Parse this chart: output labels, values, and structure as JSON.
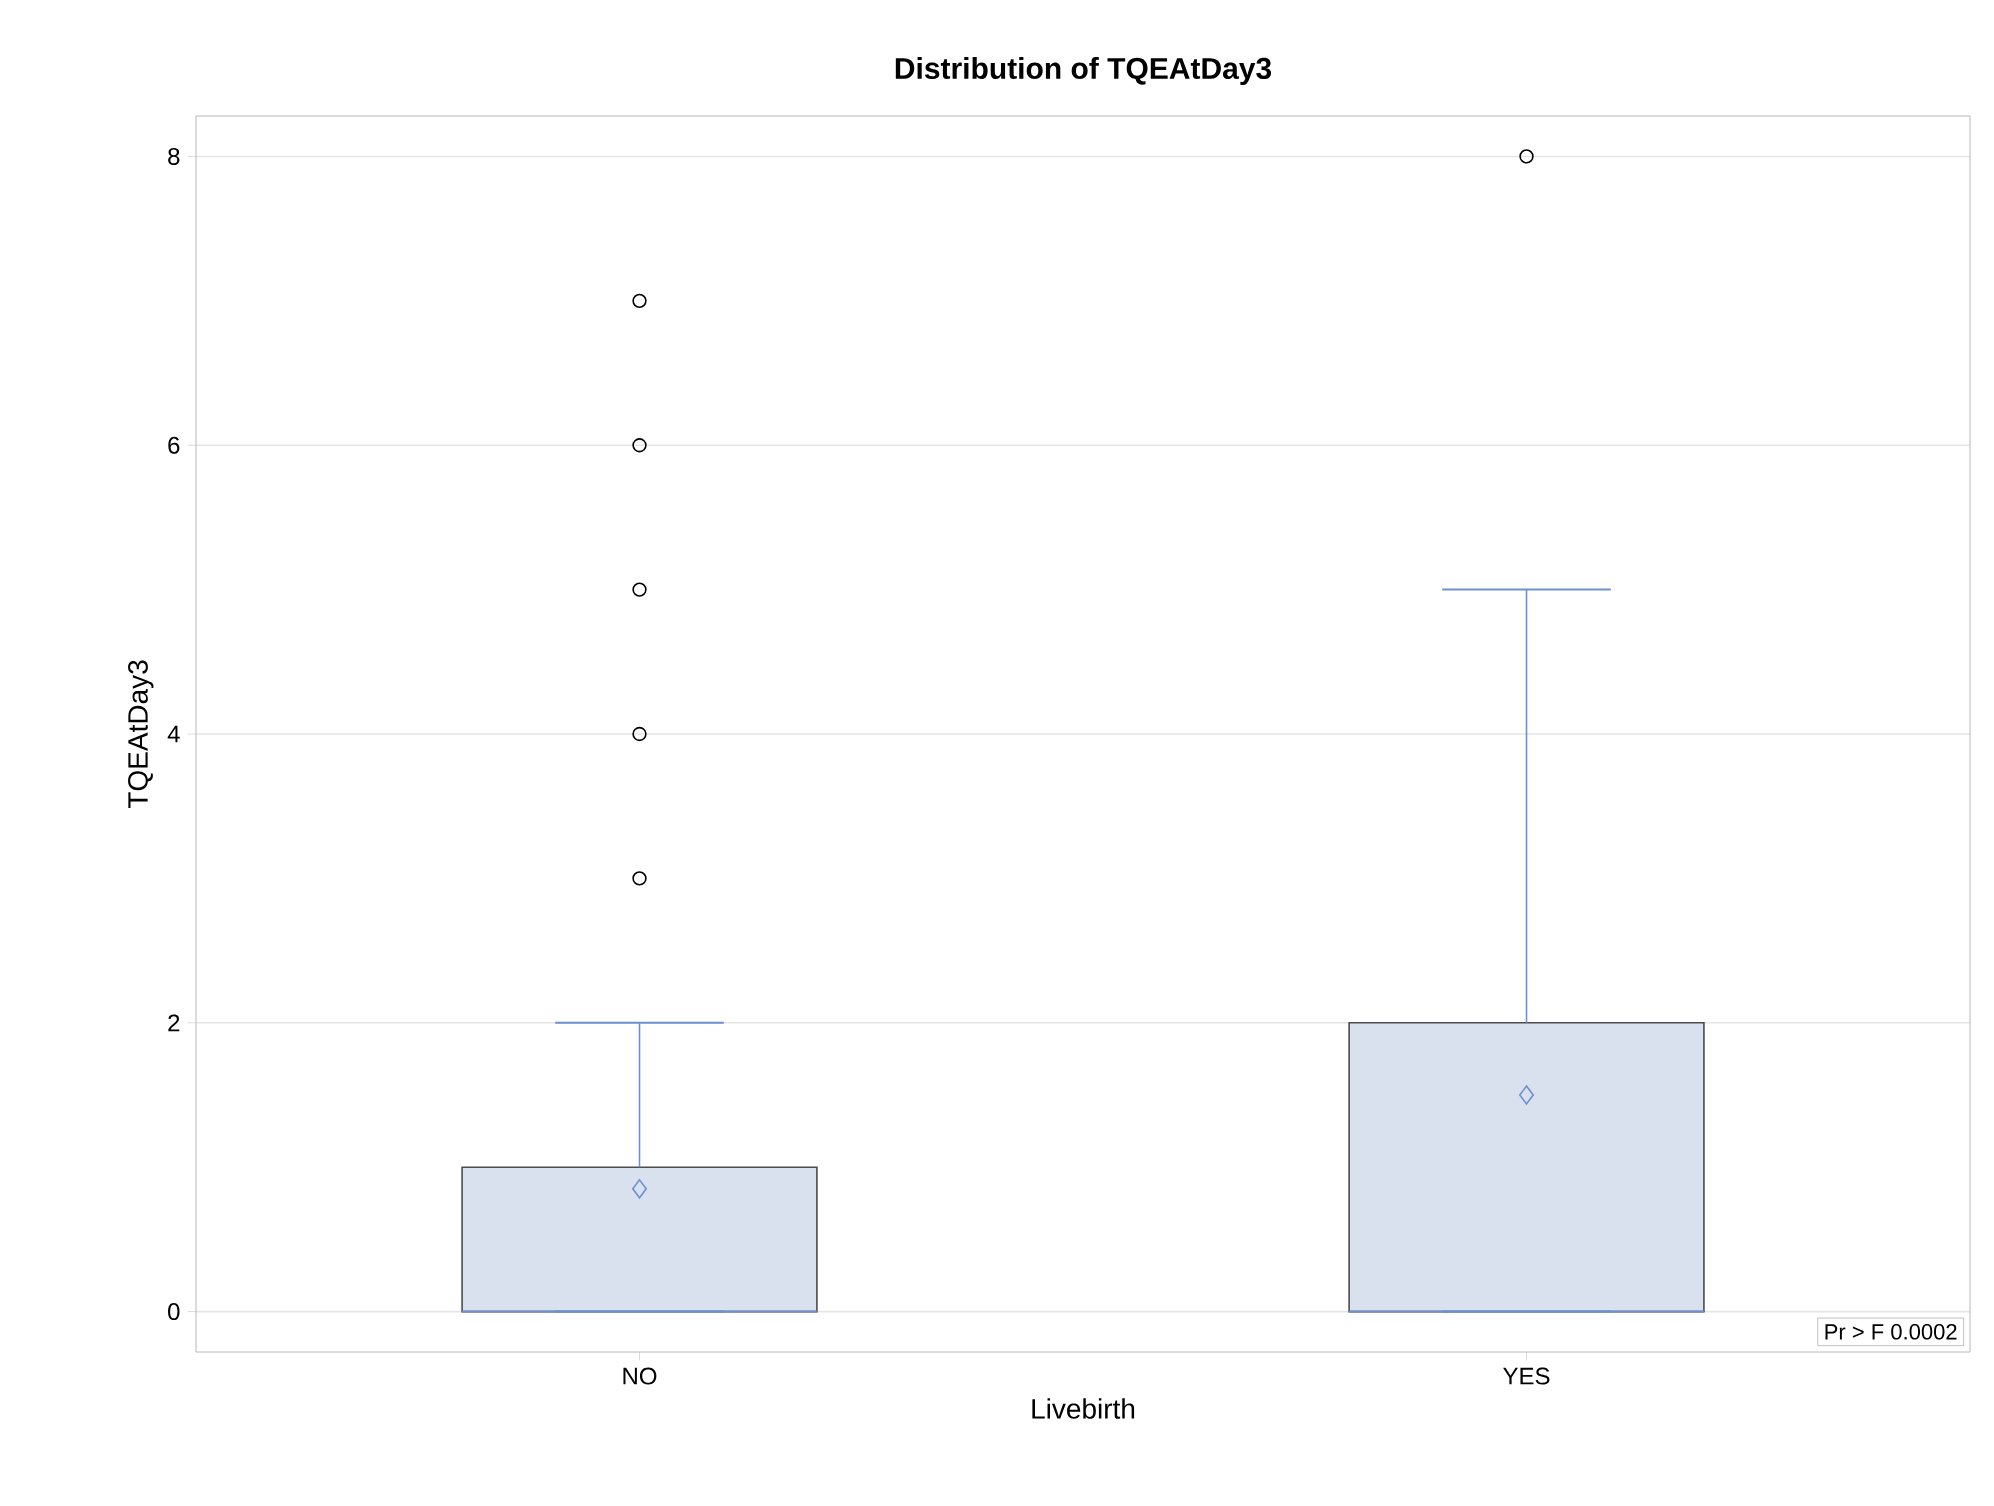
{
  "chart_data": {
    "type": "box",
    "title": "Distribution of TQEAtDay3",
    "xlabel": "Livebirth",
    "ylabel": "TQEAtDay3",
    "categories": [
      "NO",
      "YES"
    ],
    "series": [
      {
        "color": "#d9e1ee",
        "boxes": [
          {
            "low": 0,
            "q1": 0,
            "median": 0,
            "q3": 1,
            "high": 2,
            "mean": 0.85,
            "outliers": [
              3,
              4,
              5,
              6,
              7
            ]
          },
          {
            "low": 0,
            "q1": 0,
            "median": 0,
            "q3": 2,
            "high": 5,
            "mean": 1.5,
            "outliers": [
              8
            ]
          }
        ]
      }
    ],
    "ylim": [
      -0.28,
      8.28
    ],
    "yticks": [
      0,
      2,
      4,
      6,
      8
    ],
    "grid": "y",
    "annotations": [
      "Pr > F  0.0002"
    ]
  }
}
